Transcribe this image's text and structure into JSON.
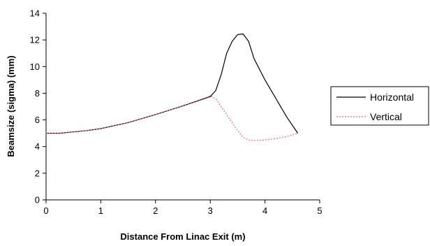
{
  "chart_data": {
    "type": "line",
    "title": "",
    "xlabel": "Distance From Linac Exit (m)",
    "ylabel": "Beamsize (sigma) (mm)",
    "xlim": [
      0,
      5
    ],
    "ylim": [
      0,
      14
    ],
    "xticks": [
      0,
      1,
      2,
      3,
      4,
      5
    ],
    "yticks": [
      0,
      2,
      4,
      6,
      8,
      10,
      12,
      14
    ],
    "xtick_labels": [
      "0",
      "1",
      "2",
      "3",
      "4",
      "5"
    ],
    "ytick_labels": [
      "0",
      "2",
      "4",
      "6",
      "8",
      "10",
      "12",
      "14"
    ],
    "grid": false,
    "legend_position": "right",
    "series": [
      {
        "name": "Horizontal",
        "color": "#000000",
        "style": "solid",
        "points": [
          [
            0,
            5.0
          ],
          [
            0.25,
            5.0
          ],
          [
            0.5,
            5.1
          ],
          [
            0.75,
            5.2
          ],
          [
            1.0,
            5.35
          ],
          [
            1.5,
            5.8
          ],
          [
            2.0,
            6.4
          ],
          [
            2.5,
            7.05
          ],
          [
            3.0,
            7.75
          ],
          [
            3.1,
            8.2
          ],
          [
            3.2,
            9.4
          ],
          [
            3.3,
            11.0
          ],
          [
            3.4,
            11.9
          ],
          [
            3.5,
            12.4
          ],
          [
            3.6,
            12.45
          ],
          [
            3.7,
            11.9
          ],
          [
            3.8,
            10.6
          ],
          [
            4.0,
            9.0
          ],
          [
            4.2,
            7.6
          ],
          [
            4.4,
            6.2
          ],
          [
            4.6,
            5.0
          ]
        ]
      },
      {
        "name": "Vertical",
        "color": "#e06a86",
        "style": "dotted",
        "points": [
          [
            0,
            5.0
          ],
          [
            0.25,
            5.0
          ],
          [
            0.5,
            5.1
          ],
          [
            0.75,
            5.2
          ],
          [
            1.0,
            5.35
          ],
          [
            1.5,
            5.8
          ],
          [
            2.0,
            6.4
          ],
          [
            2.5,
            7.05
          ],
          [
            3.0,
            7.8
          ],
          [
            3.1,
            7.6
          ],
          [
            3.3,
            6.4
          ],
          [
            3.5,
            5.2
          ],
          [
            3.6,
            4.7
          ],
          [
            3.7,
            4.5
          ],
          [
            3.8,
            4.45
          ],
          [
            4.0,
            4.5
          ],
          [
            4.2,
            4.6
          ],
          [
            4.4,
            4.75
          ],
          [
            4.6,
            5.0
          ]
        ]
      }
    ]
  }
}
